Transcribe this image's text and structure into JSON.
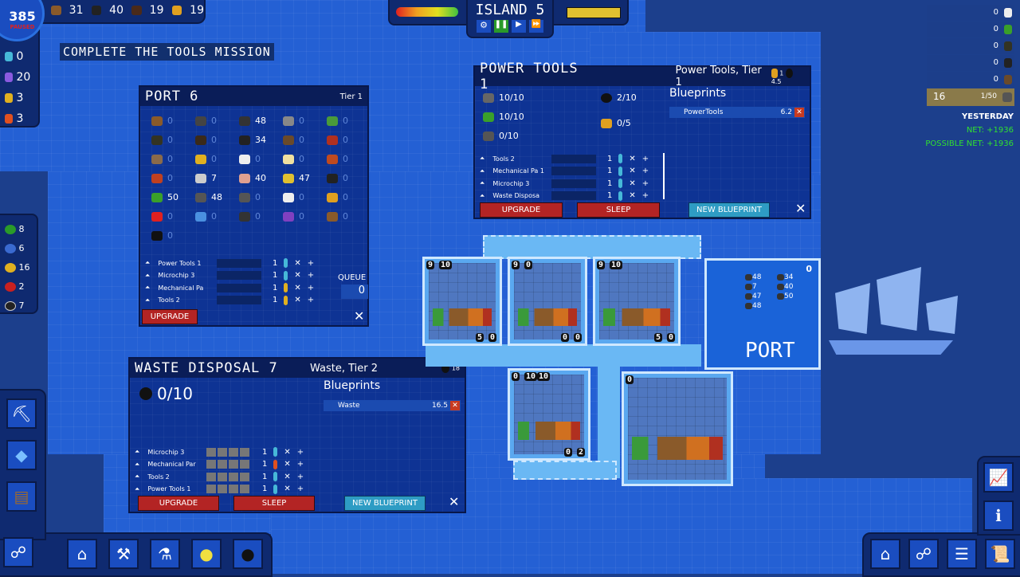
{
  "top_resources": [
    {
      "icon": "plank-icon",
      "value": "31"
    },
    {
      "icon": "metal-bar-icon",
      "value": "40"
    },
    {
      "icon": "crate-icon",
      "value": "19"
    },
    {
      "icon": "drill-icon",
      "value": "19"
    }
  ],
  "clock": {
    "value": "385",
    "status": "PAUSED"
  },
  "mission": "COMPLETE THE TOOLS MISSION",
  "workers": [
    {
      "color": "#46b8d8",
      "value": "0"
    },
    {
      "color": "#8a5ae0",
      "value": "20"
    },
    {
      "color": "#e0b020",
      "value": "3"
    },
    {
      "color": "#e05020",
      "value": "3"
    }
  ],
  "coins": [
    {
      "color": "#2a9a2a",
      "value": "8"
    },
    {
      "color": "#3a6ad0",
      "value": "6"
    },
    {
      "color": "#e0b020",
      "value": "16"
    },
    {
      "color": "#c82020",
      "value": "2"
    },
    {
      "color": "#222222",
      "value": "7"
    }
  ],
  "island": {
    "title": "ISLAND 5",
    "controls": [
      "settings",
      "pause",
      "play",
      "fast-forward"
    ]
  },
  "mission_list": {
    "rows": [
      {
        "value": "0",
        "icon": "cotton-icon"
      },
      {
        "value": "0",
        "icon": "microchip-icon"
      },
      {
        "value": "0",
        "icon": "cow-icon"
      },
      {
        "value": "0",
        "icon": "coal-icon"
      },
      {
        "value": "0",
        "icon": "wood-icon"
      }
    ],
    "highlight": {
      "left": "16",
      "right": "1/50",
      "icon": "tools-icon"
    },
    "yesterday": "YESTERDAY",
    "net": "NET: +1936",
    "possible_net": "POSSIBLE NET: +1936"
  },
  "port_panel": {
    "title": "PORT 6",
    "tier": "Tier 1",
    "items": [
      [
        "0",
        "0",
        "48",
        "0",
        "0"
      ],
      [
        "0",
        "0",
        "34",
        "0",
        "0"
      ],
      [
        "0",
        "0",
        "0",
        "0",
        "0"
      ],
      [
        "0",
        "7",
        "40",
        "47",
        "0"
      ],
      [
        "50",
        "48",
        "0",
        "0",
        "0"
      ],
      [
        "0",
        "0",
        "0",
        "0",
        "0"
      ],
      [
        "0"
      ]
    ],
    "item_colors": [
      [
        "#8a5a2a",
        "#444",
        "#333",
        "#888",
        "#4a9a3a"
      ],
      [
        "#332",
        "#3a2a1a",
        "#222",
        "#6a4a2a",
        "#b03020"
      ],
      [
        "#8a6a4a",
        "#e0b020",
        "#eee",
        "#f0e0a0",
        "#c04a20"
      ],
      [
        "#c04020",
        "#ccc",
        "#e0a090",
        "#e0c030",
        "#222"
      ],
      [
        "#3aa02a",
        "#555",
        "#555",
        "#eee",
        "#e0a020"
      ],
      [
        "#e02020",
        "#4a90e0",
        "#333",
        "#8040c0",
        "#8a5a2a"
      ],
      [
        "#111"
      ]
    ],
    "queue": [
      {
        "name": "Power Tools 1",
        "count": "1",
        "worker": "#46b8d8"
      },
      {
        "name": "Microchip 3",
        "count": "1",
        "worker": "#46b8d8"
      },
      {
        "name": "Mechanical Pa",
        "count": "1",
        "worker": "#e0b020"
      },
      {
        "name": "Tools 2",
        "count": "1",
        "worker": "#e0b020"
      }
    ],
    "queue_label": "QUEUE",
    "queue_value": "0",
    "upgrade": "UPGRADE"
  },
  "power_tools": {
    "title": "POWER TOOLS 1",
    "subtitle": "Power Tools, Tier 1",
    "header_stat1": "1",
    "header_stat2": "4.5",
    "inputs": [
      {
        "icon": "tools-icon",
        "value": "10/10"
      },
      {
        "icon": "microchip-icon",
        "value": "10/10"
      },
      {
        "icon": "gears-icon",
        "value": "0/10"
      }
    ],
    "outputs": [
      {
        "icon": "waste-bag-icon",
        "value": "2/10"
      },
      {
        "icon": "drill-icon",
        "value": "0/5"
      }
    ],
    "blueprints_label": "Blueprints",
    "blueprint": {
      "name": "PowerTools",
      "value": "6.2"
    },
    "queue": [
      {
        "name": "Tools 2",
        "count": "1"
      },
      {
        "name": "Mechanical Pa  1",
        "count": "1"
      },
      {
        "name": "Microchip 3",
        "count": "1"
      },
      {
        "name": "Waste Disposa",
        "count": "1"
      }
    ],
    "upgrade": "UPGRADE",
    "sleep": "SLEEP",
    "new_blueprint": "NEW BLUEPRINT"
  },
  "waste": {
    "title": "WASTE DISPOSAL 7",
    "subtitle": "Waste, Tier 2",
    "header_stat": "18",
    "stock": "0/10",
    "blueprints_label": "Blueprints",
    "blueprint": {
      "name": "Waste",
      "value": "16.5"
    },
    "queue": [
      {
        "name": "Microchip 3",
        "count": "1",
        "worker": "#46b8d8"
      },
      {
        "name": "Mechanical Par",
        "count": "1",
        "worker": "#e05020"
      },
      {
        "name": "Tools 2",
        "count": "1",
        "worker": "#46b8d8"
      },
      {
        "name": "Power Tools 1",
        "count": "1",
        "worker": "#46b8d8"
      }
    ],
    "upgrade": "UPGRADE",
    "sleep": "SLEEP",
    "new_blueprint": "NEW BLUEPRINT"
  },
  "map_port": {
    "label": "PORT",
    "count": "0",
    "items": [
      {
        "icon": "coal-icon",
        "value": "48"
      },
      {
        "icon": "metal-bar-icon",
        "value": "34"
      },
      {
        "icon": "tools-icon",
        "value": "7"
      },
      {
        "icon": "cells-icon",
        "value": "40"
      },
      {
        "icon": "sand-icon",
        "value": "47"
      },
      {
        "icon": "microchip-icon",
        "value": "50"
      },
      {
        "icon": "gears-icon",
        "value": "48"
      }
    ]
  },
  "buildings": [
    {
      "badges_top": [
        "9",
        "10"
      ],
      "badges_bottom": [
        "5",
        "0"
      ]
    },
    {
      "badges_top": [
        "9",
        "0"
      ],
      "badges_bottom": [
        "0",
        "0"
      ]
    },
    {
      "badges_top": [
        "9",
        "10"
      ],
      "badges_bottom": [
        "5",
        "0"
      ]
    },
    {
      "badges_top": [
        "0",
        "10",
        "10"
      ],
      "badges_bottom": [
        "0",
        "2"
      ]
    },
    {
      "badges_top": [
        "0"
      ],
      "badges_bottom": []
    }
  ]
}
